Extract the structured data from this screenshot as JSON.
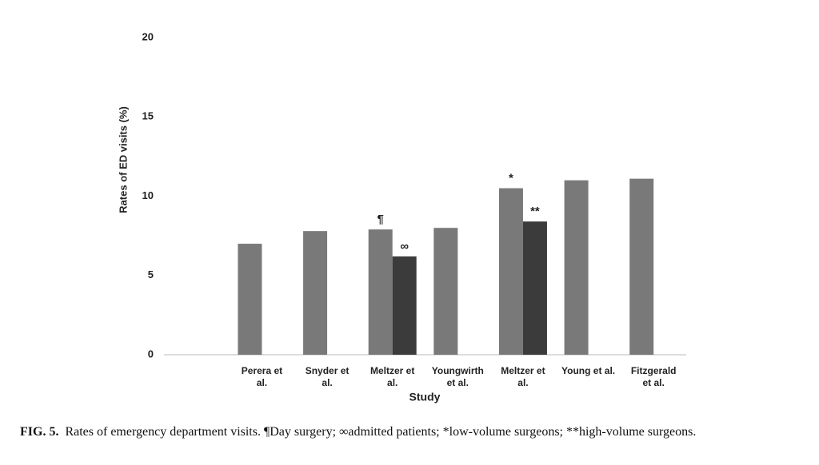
{
  "chart_data": {
    "type": "bar",
    "y_label": "Rates of ED visits (%)",
    "x_label": "Study",
    "categories": [
      null,
      "Perera et al.",
      "Snyder et al.",
      "Meltzer et al.",
      "Youngwirth et al.",
      "Meltzer et al.",
      "Young et al.",
      "Fitzgerald et al."
    ],
    "series": [
      {
        "color": "#797979",
        "values": [
          null,
          7.0,
          7.8,
          7.9,
          8.0,
          10.5,
          11.0,
          11.1
        ],
        "symbols": [
          null,
          null,
          null,
          "¶",
          null,
          "*",
          null,
          null
        ]
      },
      {
        "color": "#3b3b3b",
        "values": [
          null,
          null,
          null,
          6.2,
          null,
          8.4,
          null,
          null
        ],
        "symbols": [
          null,
          null,
          null,
          "∞",
          null,
          "**",
          null,
          null
        ]
      }
    ],
    "ylim": [
      0,
      20
    ],
    "yticks": [
      0,
      5,
      10,
      15,
      20
    ],
    "grid": false
  },
  "caption": {
    "label": "FIG. 5.",
    "text": "Rates of emergency department visits. ¶Day surgery; ∞admitted patients; *low-volume surgeons; **high-volume surgeons."
  }
}
